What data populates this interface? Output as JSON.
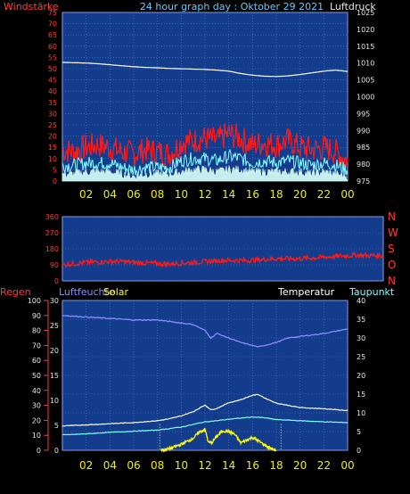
{
  "title": "24 hour graph day : Oktober 29 2021",
  "colors": {
    "background": "#000000",
    "plot_bg": "#143c8c",
    "grid": "#5a78c8",
    "frame": "#8ca0e6",
    "tick_text_left_top": "#ff3c3c",
    "title": "#64c8ff",
    "red": "#ff1a1a",
    "white": "#ffffff",
    "cyan": "#7fffff",
    "lightcyan": "#d8fff8",
    "yellow": "#ffff00",
    "periwinkle": "#8c8cff",
    "right_text": "#e6e6e6",
    "x_text": "#f0f000"
  },
  "x_ticks": [
    "02",
    "04",
    "06",
    "08",
    "10",
    "12",
    "14",
    "16",
    "18",
    "20",
    "22",
    "00"
  ],
  "chart_data": [
    {
      "type": "line",
      "title": "24 hour graph day : Oktober 29 2021",
      "left_label": "Windstärke",
      "right_label": "Luftdruck",
      "left_ticks": [
        "0",
        "5",
        "10",
        "15",
        "20",
        "25",
        "30",
        "35",
        "40",
        "45",
        "50",
        "55",
        "60",
        "65",
        "70",
        "75"
      ],
      "right_ticks": [
        "975",
        "980",
        "985",
        "990",
        "995",
        "1000",
        "1005",
        "1010",
        "1015",
        "1020",
        "1025"
      ],
      "left_range": [
        0,
        75
      ],
      "right_range": [
        975,
        1025
      ],
      "x_range_hours": [
        0,
        24
      ],
      "grid": true,
      "series": [
        {
          "axis": "right",
          "color": "#ffffff",
          "x": [
            0,
            2,
            3,
            4,
            5,
            6,
            7,
            8,
            9,
            10,
            11,
            12,
            13,
            14,
            15,
            16,
            17,
            18,
            19,
            20,
            21,
            22,
            23,
            24
          ],
          "values": [
            1010.2,
            1010.0,
            1009.8,
            1009.5,
            1009.2,
            1008.9,
            1008.7,
            1008.6,
            1008.4,
            1008.3,
            1008.2,
            1008.1,
            1007.9,
            1007.6,
            1006.9,
            1006.4,
            1006.1,
            1006.0,
            1006.2,
            1006.6,
            1007.1,
            1007.6,
            1007.9,
            1007.5
          ]
        },
        {
          "axis": "left",
          "color": "#ff1a1a",
          "x": [
            0,
            1,
            2,
            3,
            4,
            5,
            6,
            7,
            8,
            9,
            10,
            11,
            12,
            13,
            14,
            15,
            16,
            17,
            18,
            19,
            20,
            21,
            22,
            23,
            24
          ],
          "values": [
            14,
            13,
            15,
            16,
            15,
            13,
            12,
            14,
            13,
            12,
            17,
            18,
            19,
            18,
            21,
            19,
            16,
            17,
            16,
            18,
            15,
            14,
            15,
            13,
            9
          ]
        },
        {
          "axis": "left",
          "color": "#7fffff",
          "x": [
            0,
            1,
            2,
            3,
            4,
            5,
            6,
            7,
            8,
            9,
            10,
            11,
            12,
            13,
            14,
            15,
            16,
            17,
            18,
            19,
            20,
            21,
            22,
            23,
            24
          ],
          "values": [
            7,
            7,
            8,
            8,
            8,
            6,
            5,
            6,
            6,
            6,
            9,
            10,
            10,
            9,
            11,
            10,
            8,
            9,
            8,
            9,
            8,
            7,
            8,
            7,
            5
          ]
        },
        {
          "axis": "left",
          "color": "#d8fff8",
          "x": [
            0,
            1,
            2,
            3,
            4,
            5,
            6,
            7,
            8,
            9,
            10,
            11,
            12,
            13,
            14,
            15,
            16,
            17,
            18,
            19,
            20,
            21,
            22,
            23,
            24
          ],
          "values": [
            3,
            3,
            4,
            4,
            4,
            3,
            2,
            3,
            3,
            3,
            4,
            5,
            5,
            4,
            5,
            5,
            4,
            4,
            4,
            4,
            4,
            3,
            4,
            3,
            2
          ]
        }
      ]
    },
    {
      "type": "line",
      "right_labels": [
        "N",
        "W",
        "S",
        "O",
        "N"
      ],
      "left_ticks": [
        "0",
        "90",
        "180",
        "270",
        "360"
      ],
      "left_range": [
        0,
        360
      ],
      "x_range_hours": [
        0,
        24
      ],
      "grid": true,
      "series": [
        {
          "color": "#ff1a1a",
          "x": [
            0,
            2,
            4,
            6,
            8,
            10,
            12,
            14,
            16,
            18,
            20,
            22,
            24
          ],
          "values": [
            90,
            105,
            110,
            100,
            95,
            105,
            115,
            115,
            125,
            125,
            135,
            145,
            140
          ]
        }
      ]
    },
    {
      "type": "line",
      "header_labels": [
        "Regen",
        "Luftfeuchte",
        "Solar",
        "Temperatur",
        "Taupunkt"
      ],
      "left_ticks": [
        "0",
        "10",
        "20",
        "30",
        "40",
        "50",
        "60",
        "70",
        "80",
        "90",
        "100"
      ],
      "inner_ticks": [
        "0",
        "5",
        "10",
        "15",
        "20",
        "25",
        "30"
      ],
      "right_ticks": [
        "0",
        "5",
        "10",
        "15",
        "20",
        "25",
        "30",
        "35",
        "40"
      ],
      "left_range": [
        0,
        100
      ],
      "inner_range": [
        0,
        30
      ],
      "right_range": [
        0,
        40
      ],
      "x_range_hours": [
        0,
        24
      ],
      "grid": true,
      "series": [
        {
          "name": "Luftfeuchte",
          "color": "#8c8cff",
          "x": [
            0,
            2,
            4,
            6,
            8,
            9,
            10,
            11,
            12,
            12.5,
            13,
            14,
            15,
            16,
            16.5,
            17,
            18,
            19,
            20,
            22,
            24
          ],
          "values": [
            90,
            89,
            88,
            87,
            87,
            86,
            85,
            84,
            80,
            75,
            78,
            75,
            72,
            70,
            69,
            70,
            72,
            75,
            76,
            78,
            81
          ]
        },
        {
          "name": "Temperatur",
          "color": "#ffffff",
          "x": [
            0,
            2,
            4,
            6,
            8,
            9,
            10,
            11,
            12,
            12.5,
            13,
            14,
            15,
            16,
            16.5,
            17,
            18,
            19,
            20,
            22,
            24
          ],
          "values": [
            6.5,
            6.8,
            7.1,
            7.4,
            7.9,
            8.4,
            9.2,
            10.3,
            12.1,
            10.8,
            11.2,
            12.7,
            13.5,
            14.7,
            14.9,
            14.0,
            12.6,
            12.0,
            11.4,
            11.1,
            10.6
          ]
        },
        {
          "name": "Taupunkt",
          "color": "#7fffff",
          "x": [
            0,
            2,
            4,
            6,
            8,
            10,
            12,
            13,
            14,
            15,
            16,
            17,
            18,
            20,
            22,
            24
          ],
          "values": [
            4.1,
            4.4,
            4.8,
            5.1,
            5.4,
            6.2,
            7.6,
            7.9,
            8.3,
            8.6,
            8.9,
            8.7,
            8.2,
            7.9,
            7.6,
            7.4
          ]
        },
        {
          "name": "Solar",
          "color": "#ffff00",
          "x": [
            8.3,
            9,
            10,
            10.5,
            11,
            11.5,
            12,
            12.3,
            12.6,
            13,
            13.5,
            14,
            14.5,
            15,
            16,
            17,
            17.5,
            18
          ],
          "values": [
            0,
            0.3,
            1.2,
            1.8,
            2.4,
            3.6,
            4.2,
            1.5,
            1.6,
            2.8,
            3.9,
            3.8,
            3.2,
            1.5,
            2.6,
            1.1,
            0.4,
            0
          ]
        }
      ],
      "marker_hours": [
        8.2,
        18.4
      ]
    }
  ]
}
